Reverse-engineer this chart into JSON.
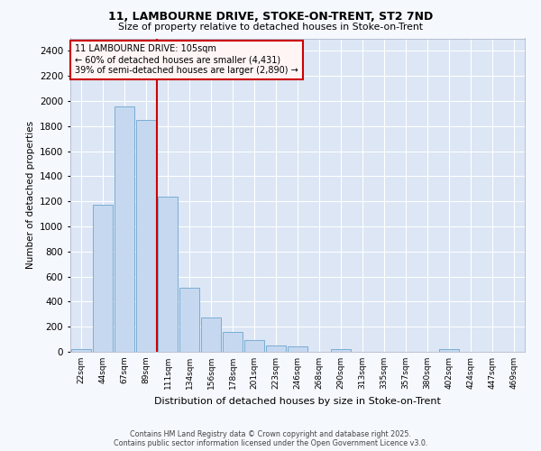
{
  "title1": "11, LAMBOURNE DRIVE, STOKE-ON-TRENT, ST2 7ND",
  "title2": "Size of property relative to detached houses in Stoke-on-Trent",
  "xlabel": "Distribution of detached houses by size in Stoke-on-Trent",
  "ylabel": "Number of detached properties",
  "categories": [
    "22sqm",
    "44sqm",
    "67sqm",
    "89sqm",
    "111sqm",
    "134sqm",
    "156sqm",
    "178sqm",
    "201sqm",
    "223sqm",
    "246sqm",
    "268sqm",
    "290sqm",
    "313sqm",
    "335sqm",
    "357sqm",
    "380sqm",
    "402sqm",
    "424sqm",
    "447sqm",
    "469sqm"
  ],
  "values": [
    25,
    1170,
    1960,
    1850,
    1240,
    510,
    270,
    155,
    90,
    50,
    40,
    0,
    20,
    0,
    0,
    0,
    0,
    20,
    0,
    0,
    0
  ],
  "bar_color": "#c5d8f0",
  "bar_edge_color": "#7aadd4",
  "bg_color": "#dce6f5",
  "grid_color": "#ffffff",
  "red_line_index": 4,
  "red_line_color": "#cc0000",
  "annotation_lines": [
    "11 LAMBOURNE DRIVE: 105sqm",
    "← 60% of detached houses are smaller (4,431)",
    "39% of semi-detached houses are larger (2,890) →"
  ],
  "annotation_box_facecolor": "#fff5f5",
  "annotation_box_edgecolor": "#cc0000",
  "footer1": "Contains HM Land Registry data © Crown copyright and database right 2025.",
  "footer2": "Contains public sector information licensed under the Open Government Licence v3.0.",
  "ylim": [
    0,
    2500
  ],
  "yticks": [
    0,
    200,
    400,
    600,
    800,
    1000,
    1200,
    1400,
    1600,
    1800,
    2000,
    2200,
    2400
  ],
  "fig_bg": "#f5f8fd"
}
